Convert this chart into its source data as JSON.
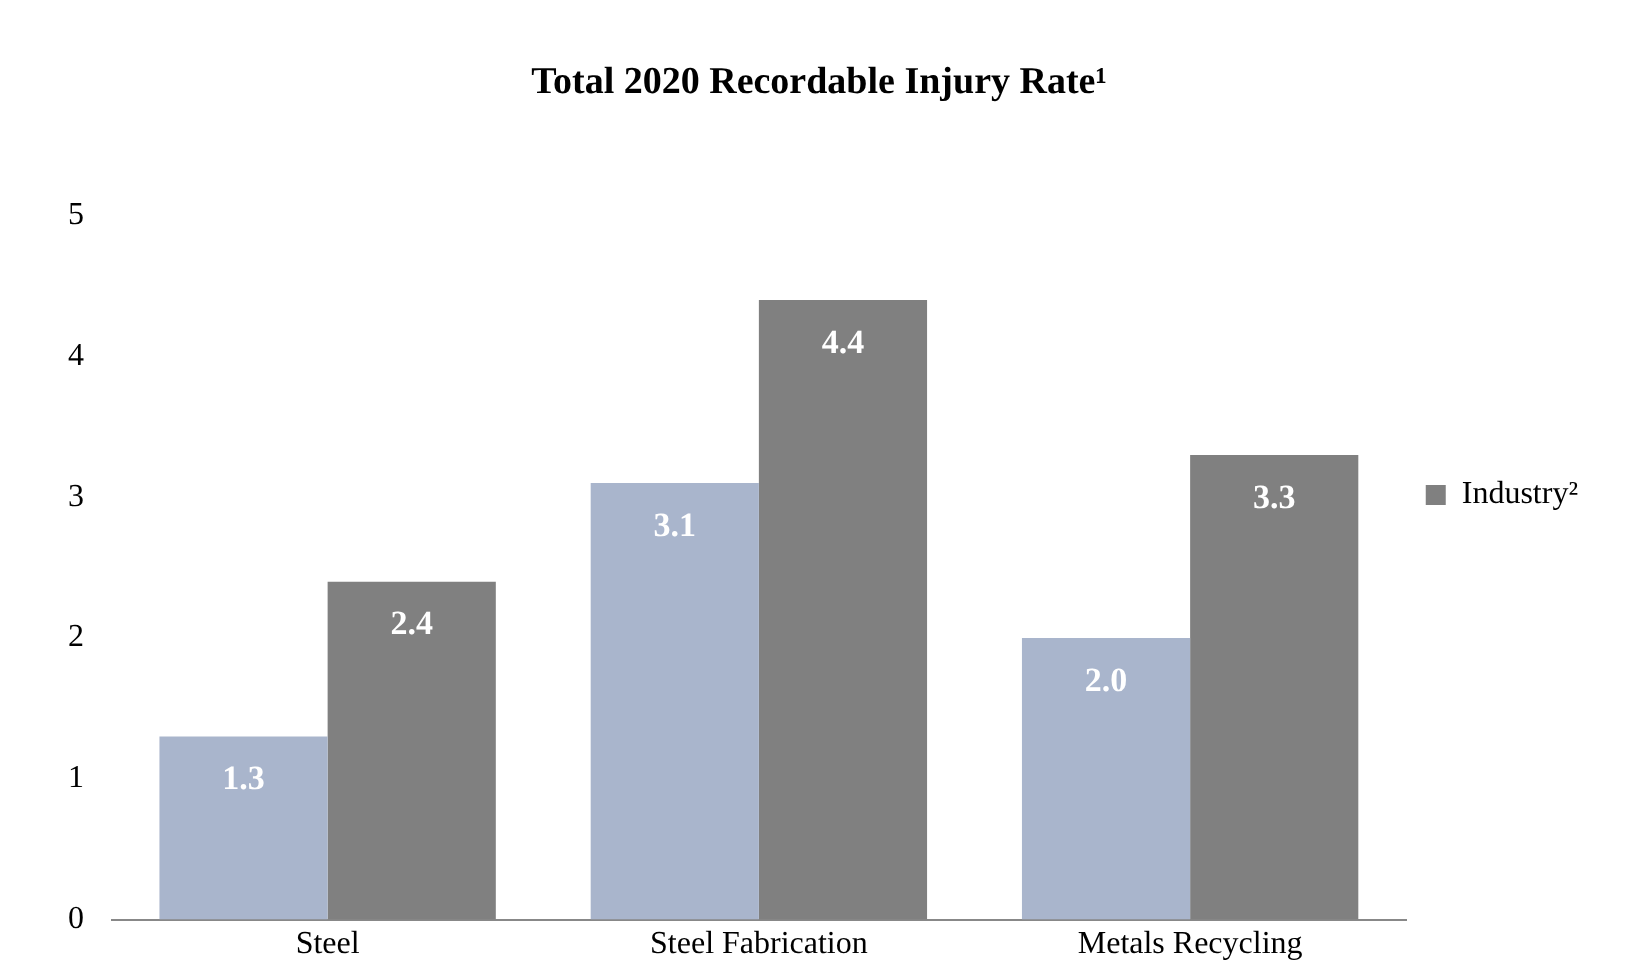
{
  "chart_data": {
    "type": "bar",
    "title": "Total 2020 Recordable Injury Rate¹",
    "categories": [
      "Steel",
      "Steel Fabrication",
      "Metals Recycling"
    ],
    "series": [
      {
        "color": "#a9b5cc",
        "values": [
          1.3,
          3.1,
          2.0
        ],
        "value_labels": [
          "1.3",
          "3.1",
          "2.0"
        ]
      },
      {
        "name": "Industry²",
        "color": "#808080",
        "values": [
          2.4,
          4.4,
          3.3
        ],
        "value_labels": [
          "2.4",
          "4.4",
          "3.3"
        ]
      }
    ],
    "ylim": [
      0,
      5
    ],
    "yticks": [
      0,
      1,
      2,
      3,
      4,
      5
    ],
    "grid": false,
    "legend": "right"
  }
}
